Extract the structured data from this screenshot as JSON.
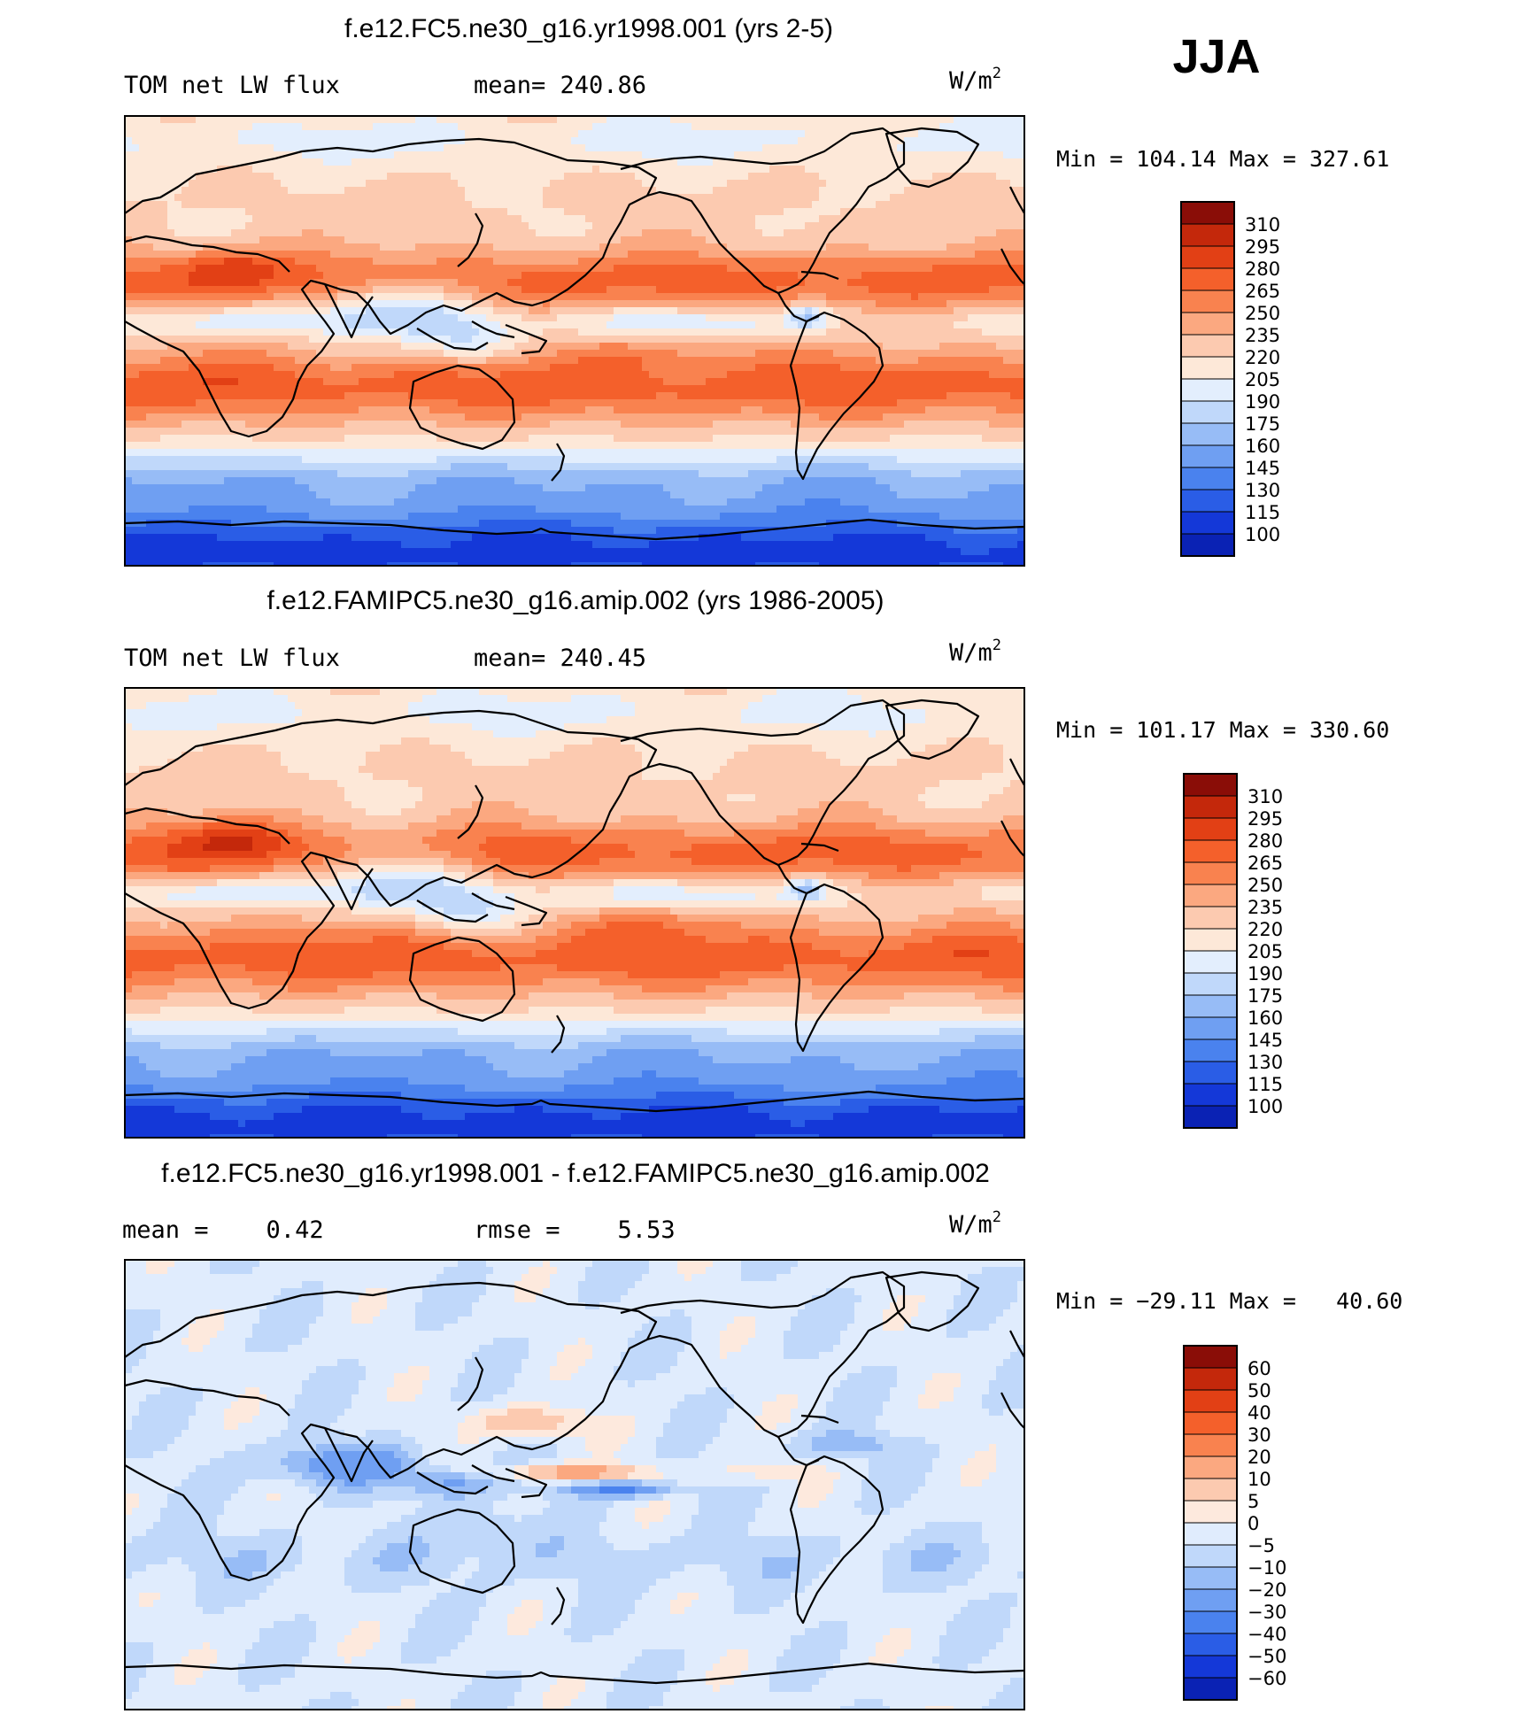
{
  "season": "JJA",
  "colors": {
    "abs_scale": [
      "#08087f",
      "#0a22b4",
      "#1438d8",
      "#2a5de6",
      "#4a82ee",
      "#6f9ff2",
      "#97bcf6",
      "#c0d8fa",
      "#e3eefd",
      "#fde8d8",
      "#fccab0",
      "#fba880",
      "#f9824f",
      "#f4602b",
      "#e24015",
      "#c4280b",
      "#8a0d07"
    ],
    "diff_scale": [
      "#08087f",
      "#0a22b4",
      "#1438d8",
      "#2a5de6",
      "#4a82ee",
      "#6f9ff2",
      "#97bcf6",
      "#c0d8fa",
      "#e0ecfd",
      "#fde9dd",
      "#fccab0",
      "#fba880",
      "#f9824f",
      "#f4602b",
      "#e24015",
      "#c4280b",
      "#8a0d07"
    ],
    "coastline": "#000000"
  },
  "chart_data": [
    {
      "type": "heatmap",
      "title": "f.e12.FC5.ne30_g16.yr1998.001 (yrs 2-5)",
      "left_label": "TOM net LW flux",
      "center_label": "mean= 240.86",
      "units_base": "W/m",
      "units_exp": "2",
      "minmax": "Min = 104.14 Max = 327.61",
      "mean": 240.86,
      "min": 104.14,
      "max": 327.61,
      "colorbar_levels": [
        "310",
        "295",
        "280",
        "265",
        "250",
        "235",
        "220",
        "205",
        "190",
        "175",
        "160",
        "145",
        "130",
        "115",
        "100"
      ]
    },
    {
      "type": "heatmap",
      "title": "f.e12.FAMIPC5.ne30_g16.amip.002 (yrs 1986-2005)",
      "left_label": "TOM net LW flux",
      "center_label": "mean= 240.45",
      "units_base": "W/m",
      "units_exp": "2",
      "minmax": "Min = 101.17 Max = 330.60",
      "mean": 240.45,
      "min": 101.17,
      "max": 330.6,
      "colorbar_levels": [
        "310",
        "295",
        "280",
        "265",
        "250",
        "235",
        "220",
        "205",
        "190",
        "175",
        "160",
        "145",
        "130",
        "115",
        "100"
      ]
    },
    {
      "type": "heatmap",
      "title": "f.e12.FC5.ne30_g16.yr1998.001 - f.e12.FAMIPC5.ne30_g16.amip.002",
      "left_label": "mean =    0.42",
      "center_label": "rmse =    5.53",
      "units_base": "W/m",
      "units_exp": "2",
      "minmax": "Min = −29.11 Max =   40.60",
      "mean": 0.42,
      "rmse": 5.53,
      "min": -29.11,
      "max": 40.6,
      "colorbar_levels": [
        "60",
        "50",
        "40",
        "30",
        "20",
        "10",
        "5",
        "0",
        "−5",
        "−10",
        "−20",
        "−30",
        "−40",
        "−50",
        "−60"
      ]
    }
  ]
}
